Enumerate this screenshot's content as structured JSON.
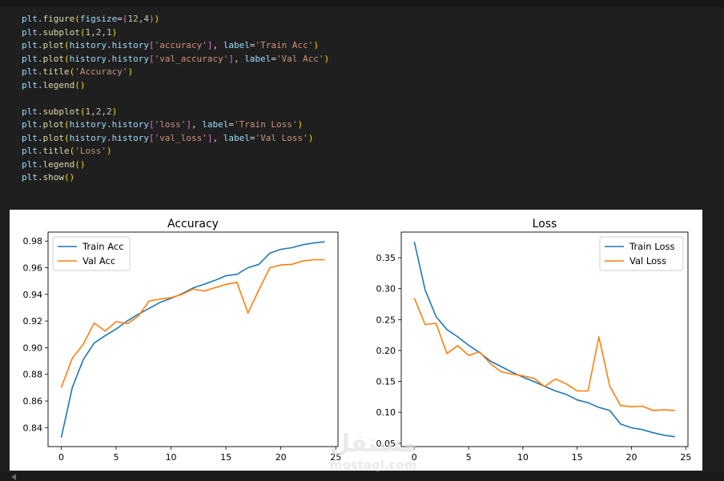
{
  "code_cell": {
    "lines": [
      "plt.figure(figsize=(12,4))",
      "plt.subplot(1,2,1)",
      "plt.plot(history.history['accuracy'], label='Train Acc')",
      "plt.plot(history.history['val_accuracy'], label='Val Acc')",
      "plt.title('Accuracy')",
      "plt.legend()",
      "",
      "plt.subplot(1,2,2)",
      "plt.plot(history.history['loss'], label='Train Loss')",
      "plt.plot(history.history['val_loss'], label='Val Loss')",
      "plt.title('Loss')",
      "plt.legend()",
      "plt.show()"
    ]
  },
  "watermark": {
    "text_ar": "مستقل",
    "text_en": "mostaql.com"
  },
  "colors": {
    "train": "#1f77b4",
    "val": "#ff7f0e"
  },
  "chart_data": [
    {
      "type": "line",
      "title": "Accuracy",
      "xlabel": "",
      "ylabel": "",
      "xlim": [
        -1.2,
        25.2
      ],
      "ylim": [
        0.8258,
        0.9867
      ],
      "xticks": [
        0,
        5,
        10,
        15,
        20,
        25
      ],
      "xtick_labels": [
        "0",
        "5",
        "10",
        "15",
        "20",
        "25"
      ],
      "yticks": [
        0.84,
        0.86,
        0.88,
        0.9,
        0.92,
        0.94,
        0.96,
        0.98
      ],
      "ytick_labels": [
        "0.84",
        "0.86",
        "0.88",
        "0.90",
        "0.92",
        "0.94",
        "0.96",
        "0.98"
      ],
      "legend_position": "upper-left",
      "x": [
        0,
        1,
        2,
        3,
        4,
        5,
        6,
        7,
        8,
        9,
        10,
        11,
        12,
        13,
        14,
        15,
        16,
        17,
        18,
        19,
        20,
        21,
        22,
        23,
        24
      ],
      "series": [
        {
          "name": "Train Acc",
          "color": "#1f77b4",
          "values": [
            0.8325,
            0.87,
            0.891,
            0.9035,
            0.909,
            0.914,
            0.92,
            0.925,
            0.9295,
            0.934,
            0.937,
            0.9405,
            0.9448,
            0.9475,
            0.9505,
            0.954,
            0.955,
            0.96,
            0.9625,
            0.971,
            0.9738,
            0.975,
            0.9772,
            0.9785,
            0.9795
          ]
        },
        {
          "name": "Val Acc",
          "color": "#ff7f0e",
          "values": [
            0.87,
            0.892,
            0.9025,
            0.9185,
            0.9125,
            0.9195,
            0.918,
            0.9235,
            0.935,
            0.9365,
            0.9375,
            0.94,
            0.944,
            0.9425,
            0.945,
            0.9475,
            0.949,
            0.926,
            0.9435,
            0.96,
            0.962,
            0.9625,
            0.965,
            0.966,
            0.966
          ]
        }
      ]
    },
    {
      "type": "line",
      "title": "Loss",
      "xlabel": "",
      "ylabel": "",
      "xlim": [
        -1.2,
        25.2
      ],
      "ylim": [
        0.0446,
        0.3915
      ],
      "xticks": [
        0,
        5,
        10,
        15,
        20,
        25
      ],
      "xtick_labels": [
        "0",
        "5",
        "10",
        "15",
        "20",
        "25"
      ],
      "yticks": [
        0.05,
        0.1,
        0.15,
        0.2,
        0.25,
        0.3,
        0.35
      ],
      "ytick_labels": [
        "0.05",
        "0.10",
        "0.15",
        "0.20",
        "0.25",
        "0.30",
        "0.35"
      ],
      "legend_position": "upper-right",
      "x": [
        0,
        1,
        2,
        3,
        4,
        5,
        6,
        7,
        8,
        9,
        10,
        11,
        12,
        13,
        14,
        15,
        16,
        17,
        18,
        19,
        20,
        21,
        22,
        23,
        24
      ],
      "series": [
        {
          "name": "Train Loss",
          "color": "#1f77b4",
          "values": [
            0.376,
            0.298,
            0.255,
            0.234,
            0.222,
            0.2085,
            0.197,
            0.183,
            0.174,
            0.165,
            0.157,
            0.15,
            0.142,
            0.1345,
            0.129,
            0.12,
            0.1155,
            0.108,
            0.103,
            0.081,
            0.075,
            0.072,
            0.067,
            0.063,
            0.0605
          ]
        },
        {
          "name": "Val Loss",
          "color": "#ff7f0e",
          "values": [
            0.285,
            0.242,
            0.244,
            0.195,
            0.208,
            0.192,
            0.198,
            0.179,
            0.1655,
            0.162,
            0.159,
            0.155,
            0.142,
            0.154,
            0.146,
            0.1345,
            0.1345,
            0.222,
            0.142,
            0.111,
            0.109,
            0.11,
            0.103,
            0.104,
            0.103
          ]
        }
      ]
    }
  ]
}
